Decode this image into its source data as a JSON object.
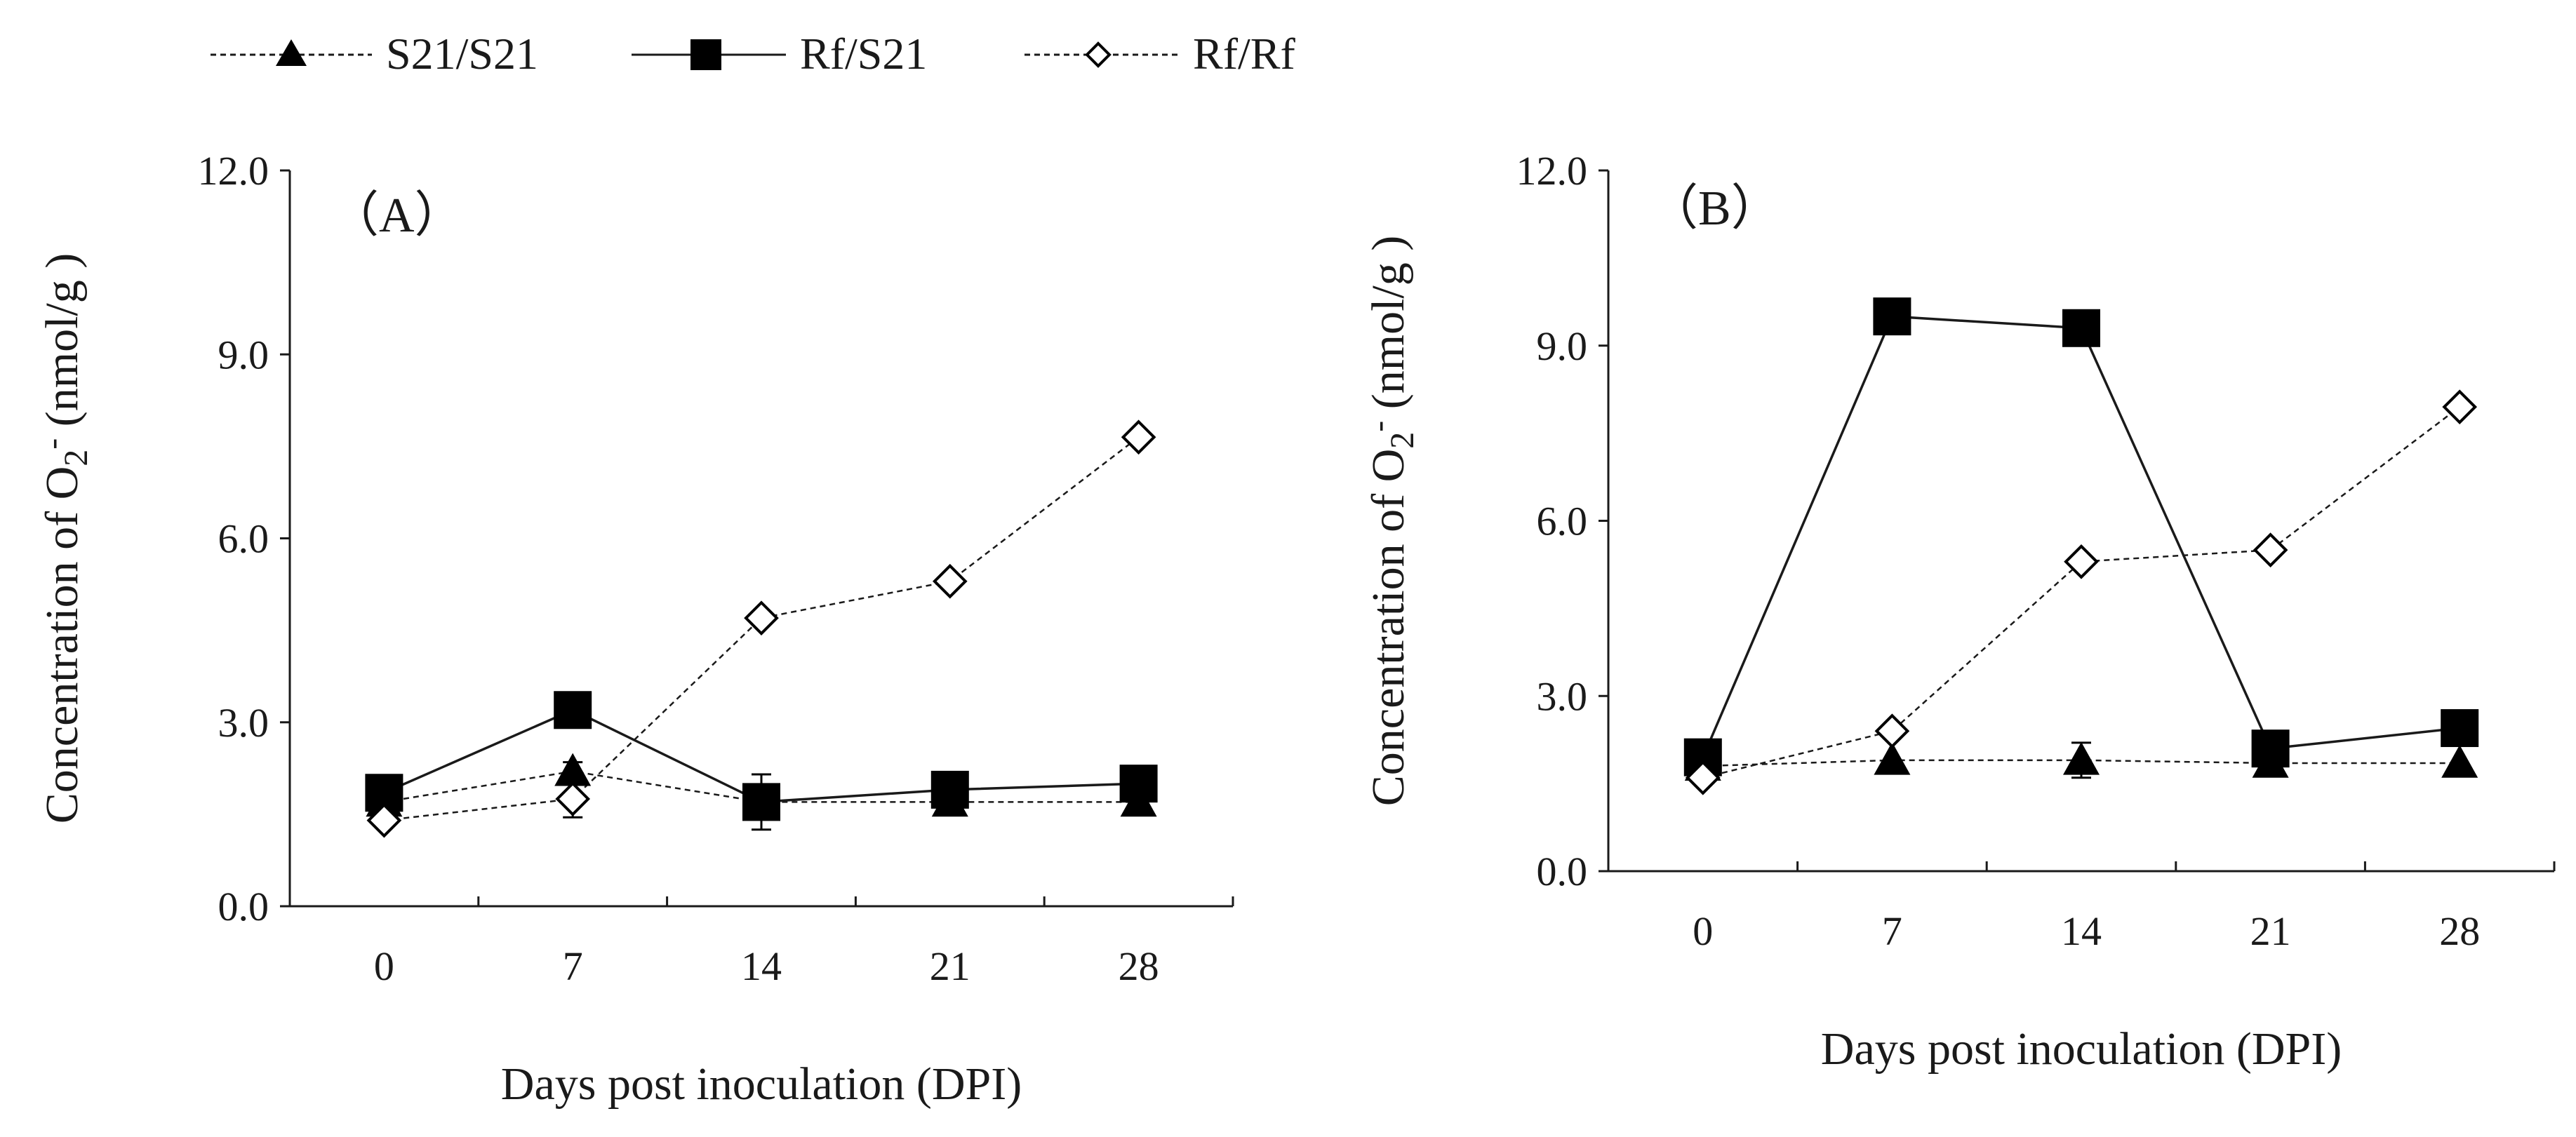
{
  "legend": [
    {
      "series": "S21/S21",
      "marker": "triangle",
      "line": "dashed"
    },
    {
      "series": "Rf/S21",
      "marker": "square",
      "line": "solid"
    },
    {
      "series": "Rf/Rf",
      "marker": "diamond",
      "line": "dashed"
    }
  ],
  "chart_data": [
    {
      "type": "line",
      "panel_label": "（A）",
      "title": "",
      "xlabel": "Days post inoculation (DPI)",
      "ylabel": "Concentration of O2- (nmol/g )",
      "ylabel_parts": {
        "prefix": "Concentration of O",
        "sub": "2",
        "sup": "-",
        "suffix": " (nmol/g )"
      },
      "categories": [
        "0",
        "7",
        "14",
        "21",
        "28"
      ],
      "yticks": [
        "0.0",
        "3.0",
        "6.0",
        "9.0",
        "12.0"
      ],
      "ylim": [
        0,
        12
      ],
      "grid": false,
      "legend_position": "top",
      "series": [
        {
          "name": "S21/S21",
          "values": [
            1.7,
            2.2,
            1.7,
            1.7,
            1.7
          ],
          "errors": [
            0,
            0.15,
            0,
            0,
            0
          ],
          "marker": "triangle",
          "line": "dashed"
        },
        {
          "name": "Rf/S21",
          "values": [
            1.85,
            3.2,
            1.7,
            1.9,
            2.0
          ],
          "errors": [
            0,
            0,
            0.45,
            0,
            0
          ],
          "marker": "square",
          "line": "solid"
        },
        {
          "name": "Rf/Rf",
          "values": [
            1.4,
            1.75,
            4.7,
            5.3,
            7.65
          ],
          "errors": [
            0,
            0.3,
            0,
            0,
            0
          ],
          "marker": "diamond",
          "line": "dashed"
        }
      ]
    },
    {
      "type": "line",
      "panel_label": "（B）",
      "title": "",
      "xlabel": "Days post inoculation (DPI)",
      "ylabel": "Concentration of O2- (nmol/g )",
      "ylabel_parts": {
        "prefix": "Concentration of O",
        "sub": "2",
        "sup": "-",
        "suffix": " (nmol/g )"
      },
      "categories": [
        "0",
        "7",
        "14",
        "21",
        "28"
      ],
      "yticks": [
        "0.0",
        "3.0",
        "6.0",
        "9.0",
        "12.0"
      ],
      "ylim": [
        0,
        12
      ],
      "grid": false,
      "legend_position": "top",
      "series": [
        {
          "name": "S21/S21",
          "values": [
            1.8,
            1.9,
            1.9,
            1.85,
            1.85
          ],
          "errors": [
            0,
            0,
            0.3,
            0,
            0
          ],
          "marker": "triangle",
          "line": "dashed"
        },
        {
          "name": "Rf/S21",
          "values": [
            1.95,
            9.5,
            9.3,
            2.1,
            2.45
          ],
          "errors": [
            0,
            0,
            0,
            0,
            0
          ],
          "marker": "square",
          "line": "solid"
        },
        {
          "name": "Rf/Rf",
          "values": [
            1.6,
            2.4,
            5.3,
            5.5,
            7.95
          ],
          "errors": [
            0,
            0,
            0,
            0,
            0
          ],
          "marker": "diamond",
          "line": "dashed"
        }
      ]
    }
  ]
}
